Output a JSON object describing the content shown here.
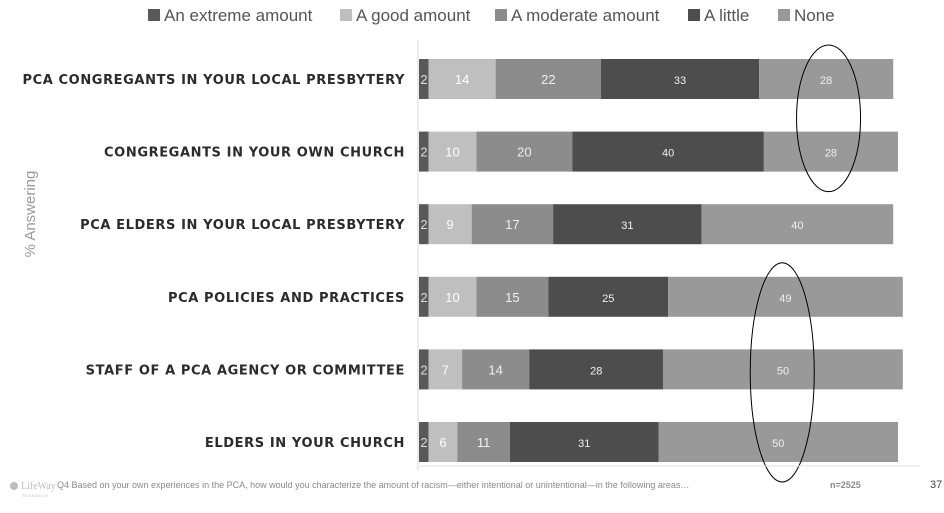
{
  "chart_data": {
    "type": "bar",
    "orientation": "horizontal",
    "stacked": true,
    "categories": [
      "PCA CONGREGANTS IN YOUR LOCAL PRESBYTERY",
      "CONGREGANTS IN YOUR OWN CHURCH",
      "PCA ELDERS IN YOUR LOCAL PRESBYTERY",
      "PCA POLICIES AND PRACTICES",
      "STAFF OF A PCA AGENCY OR COMMITTEE",
      "ELDERS IN YOUR CHURCH"
    ],
    "series": [
      {
        "name": "An extreme amount",
        "color": "#595959",
        "values": [
          2,
          2,
          2,
          2,
          2,
          2
        ]
      },
      {
        "name": "A good amount",
        "color": "#bfbfbf",
        "values": [
          14,
          10,
          9,
          10,
          7,
          6
        ]
      },
      {
        "name": "A moderate amount",
        "color": "#8c8c8c",
        "values": [
          22,
          20,
          17,
          15,
          14,
          11
        ]
      },
      {
        "name": "A little",
        "color": "#4d4d4d",
        "values": [
          33,
          40,
          31,
          25,
          28,
          31
        ]
      },
      {
        "name": "None",
        "color": "#999999",
        "values": [
          28,
          28,
          40,
          49,
          50,
          50
        ]
      }
    ],
    "ylabel": "% Answering",
    "xlim": [
      0,
      100
    ],
    "legend_position": "top",
    "grid": false,
    "highlight_ellipses": [
      {
        "series": "None",
        "categories": [
          "PCA CONGREGANTS IN YOUR LOCAL PRESBYTERY",
          "CONGREGANTS IN YOUR OWN CHURCH"
        ]
      },
      {
        "series": "None",
        "categories": [
          "PCA POLICIES AND PRACTICES",
          "STAFF OF A PCA AGENCY OR COMMITTEE",
          "ELDERS IN YOUR CHURCH"
        ]
      }
    ]
  },
  "footnote": "Q4  Based on your own experiences in the PCA, how would you characterize the amount of racism—either intentional or unintentional—in the following areas…",
  "sample_size": "n=2525",
  "page_number": "37",
  "logo": {
    "name": "LifeWay Research",
    "text": "LifeWay"
  }
}
